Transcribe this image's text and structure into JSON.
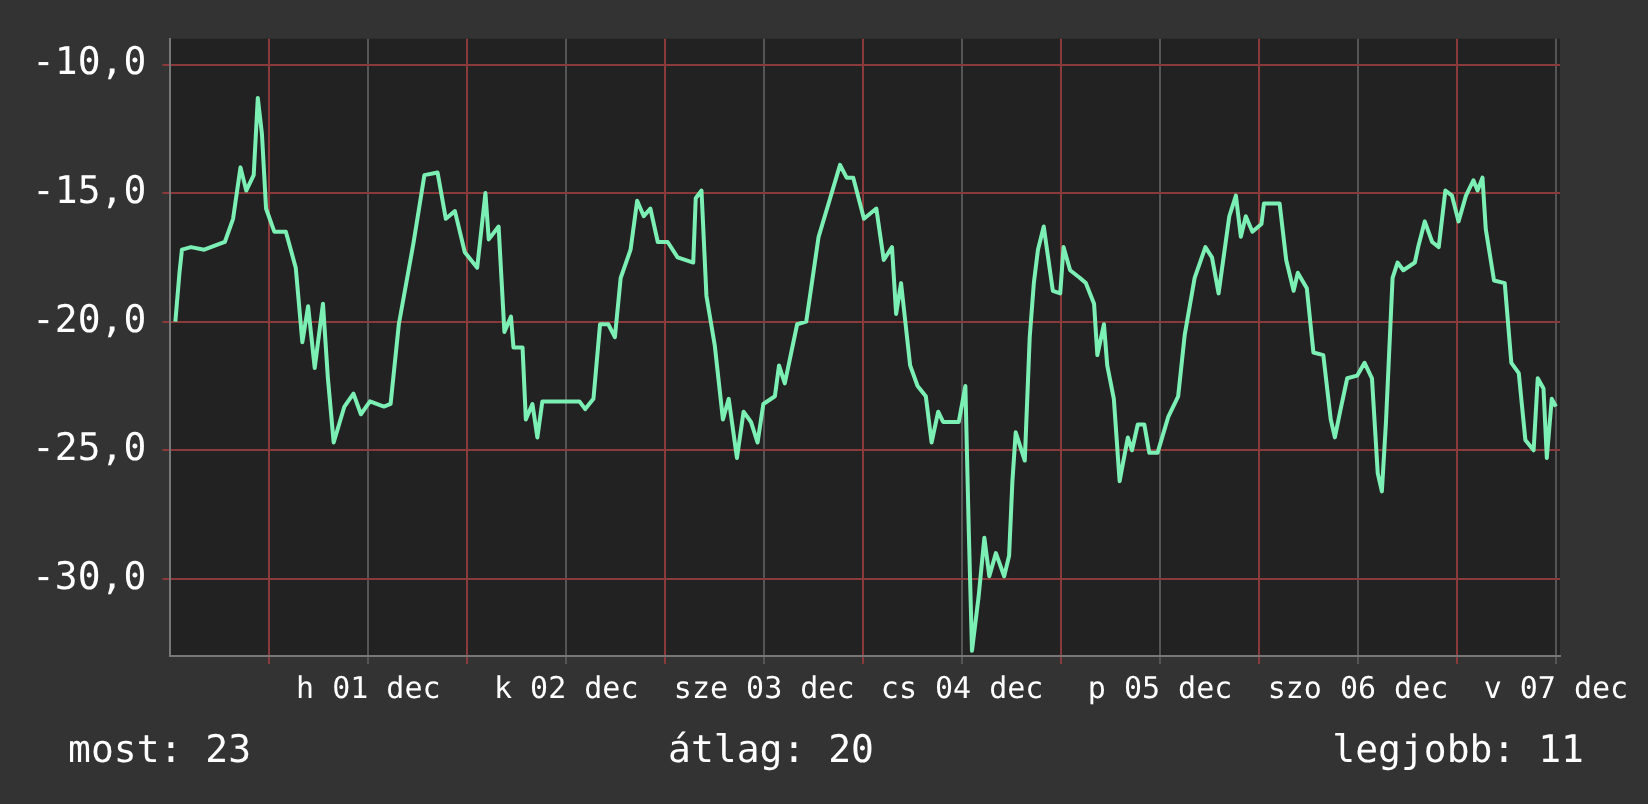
{
  "chart_data": {
    "type": "line",
    "annotations": [
      "most: 23",
      "átlag: 20",
      "legjobb: 11"
    ],
    "xlim": [
      "--11-30T12:00",
      "--12-07T12:30"
    ],
    "ylim": [
      -33,
      -9
    ],
    "xticks": [
      {
        "value": "--12-01T00:00",
        "label": null
      },
      {
        "value": "--12-01T12:00",
        "label": "h 01 dec"
      },
      {
        "value": "--12-02T00:00",
        "label": null
      },
      {
        "value": "--12-02T12:00",
        "label": "k 02 dec"
      },
      {
        "value": "--12-03T00:00",
        "label": null
      },
      {
        "value": "--12-03T12:00",
        "label": "sze 03 dec"
      },
      {
        "value": "--12-04T00:00",
        "label": null
      },
      {
        "value": "--12-04T12:00",
        "label": "cs 04 dec"
      },
      {
        "value": "--12-05T00:00",
        "label": null
      },
      {
        "value": "--12-05T12:00",
        "label": "p 05 dec"
      },
      {
        "value": "--12-06T00:00",
        "label": null
      },
      {
        "value": "--12-06T12:00",
        "label": "szo 06 dec"
      },
      {
        "value": "--12-07T00:00",
        "label": null
      },
      {
        "value": "--12-07T12:00",
        "label": "v 07 dec"
      }
    ],
    "yticks": [
      {
        "value": -10,
        "label": "-10,0"
      },
      {
        "value": -15,
        "label": "-15,0"
      },
      {
        "value": -20,
        "label": "-20,0"
      },
      {
        "value": -25,
        "label": "-25,0"
      },
      {
        "value": -30,
        "label": "-30,0"
      }
    ],
    "grid": true,
    "marker": "none",
    "line_style": "solid",
    "series": [
      {
        "color": "#7cf0b4",
        "x": [
          "--11-30T12:36",
          "--11-30T13:06",
          "--11-30T13:24",
          "--11-30T14:30",
          "--11-30T16:06",
          "--11-30T18:36",
          "--11-30T19:36",
          "--11-30T20:30",
          "--11-30T21:12",
          "--11-30T22:06",
          "--11-30T22:36",
          "--11-30T23:06",
          "--11-30T23:36",
          "--12-01T00:36",
          "--12-01T02:00",
          "--12-01T03:12",
          "--12-01T04:00",
          "--12-01T04:42",
          "--12-01T05:30",
          "--12-01T06:30",
          "--12-01T07:06",
          "--12-01T07:48",
          "--12-01T09:06",
          "--12-01T10:12",
          "--12-01T11:06",
          "--12-01T12:12",
          "--12-01T13:54",
          "--12-01T14:42",
          "--12-01T15:42",
          "--12-01T17:30",
          "--12-01T18:48",
          "--12-01T20:24",
          "--12-01T21:24",
          "--12-01T22:30",
          "--12-01T23:42",
          "--12-02T01:12",
          "--12-02T02:12",
          "--12-02T02:36",
          "--12-02T03:48",
          "--12-02T04:30",
          "--12-02T05:18",
          "--12-02T05:36",
          "--12-02T06:42",
          "--12-02T07:06",
          "--12-02T07:54",
          "--12-02T08:30",
          "--12-02T09:06",
          "--12-02T13:36",
          "--12-02T14:18",
          "--12-02T15:18",
          "--12-02T16:06",
          "--12-02T17:06",
          "--12-02T17:54",
          "--12-02T18:36",
          "--12-02T19:48",
          "--12-02T20:36",
          "--12-02T21:24",
          "--12-02T22:12",
          "--12-02T23:06",
          "--12-03T00:18",
          "--12-03T01:30",
          "--12-03T03:24",
          "--12-03T03:42",
          "--12-03T04:24",
          "--12-03T05:00",
          "--12-03T06:00",
          "--12-03T07:00",
          "--12-03T07:42",
          "--12-03T08:42",
          "--12-03T09:30",
          "--12-03T10:24",
          "--12-03T11:12",
          "--12-03T11:54",
          "--12-03T13:18",
          "--12-03T13:48",
          "--12-03T14:30",
          "--12-03T16:00",
          "--12-03T17:06",
          "--12-03T18:36",
          "--12-03T20:00",
          "--12-03T21:12",
          "--12-03T22:00",
          "--12-03T22:48",
          "--12-04T00:06",
          "--12-04T01:36",
          "--12-04T02:30",
          "--12-04T03:30",
          "--12-04T04:00",
          "--12-04T04:36",
          "--12-04T05:42",
          "--12-04T06:36",
          "--12-04T07:36",
          "--12-04T08:18",
          "--12-04T09:06",
          "--12-04T09:42",
          "--12-04T11:36",
          "--12-04T12:24",
          "--12-04T12:48",
          "--12-04T13:12",
          "--12-04T14:00",
          "--12-04T14:42",
          "--12-04T15:18",
          "--12-04T16:06",
          "--12-04T17:06",
          "--12-04T17:42",
          "--12-04T18:06",
          "--12-04T18:30",
          "--12-04T19:36",
          "--12-04T20:12",
          "--12-04T20:42",
          "--12-04T21:12",
          "--12-04T21:54",
          "--12-04T23:00",
          "--12-04T23:54",
          "--12-05T00:18",
          "--12-05T01:06",
          "--12-05T02:18",
          "--12-05T03:00",
          "--12-05T04:00",
          "--12-05T04:24",
          "--12-05T05:12",
          "--12-05T05:36",
          "--12-05T06:24",
          "--12-05T07:06",
          "--12-05T08:06",
          "--12-05T08:36",
          "--12-05T09:18",
          "--12-05T10:06",
          "--12-05T10:42",
          "--12-05T11:42",
          "--12-05T13:00",
          "--12-05T14:12",
          "--12-05T15:00",
          "--12-05T16:12",
          "--12-05T17:30",
          "--12-05T18:18",
          "--12-05T19:06",
          "--12-05T20:24",
          "--12-05T21:12",
          "--12-05T21:48",
          "--12-05T22:24",
          "--12-05T23:12",
          "--12-06T00:18",
          "--12-06T00:36",
          "--12-06T02:30",
          "--12-06T03:18",
          "--12-06T04:12",
          "--12-06T04:42",
          "--12-06T05:48",
          "--12-06T06:36",
          "--12-06T07:48",
          "--12-06T08:42",
          "--12-06T09:12",
          "--12-06T09:54",
          "--12-06T10:42",
          "--12-06T11:54",
          "--12-06T12:48",
          "--12-06T13:42",
          "--12-06T14:24",
          "--12-06T14:54",
          "--12-06T15:24",
          "--12-06T16:12",
          "--12-06T16:48",
          "--12-06T17:30",
          "--12-06T18:54",
          "--12-06T19:18",
          "--12-06T20:06",
          "--12-06T21:00",
          "--12-06T21:48",
          "--12-06T22:36",
          "--12-06T23:24",
          "--12-07T00:12",
          "--12-07T01:06",
          "--12-07T02:00",
          "--12-07T02:30",
          "--12-07T03:06",
          "--12-07T03:30",
          "--12-07T04:30",
          "--12-07T05:48",
          "--12-07T06:36",
          "--12-07T07:30",
          "--12-07T08:18",
          "--12-07T09:18",
          "--12-07T09:48",
          "--12-07T10:30",
          "--12-07T10:54",
          "--12-07T11:30",
          "--12-07T12:00"
        ],
        "values": [
          -20.0,
          -18.1,
          -17.2,
          -17.1,
          -17.2,
          -16.9,
          -16.0,
          -14.0,
          -14.9,
          -14.3,
          -11.3,
          -12.7,
          -15.6,
          -16.5,
          -16.5,
          -17.9,
          -20.8,
          -19.4,
          -21.8,
          -19.3,
          -22.2,
          -24.7,
          -23.3,
          -22.8,
          -23.6,
          -23.1,
          -23.3,
          -23.2,
          -20.1,
          -16.9,
          -14.3,
          -14.2,
          -16.0,
          -15.7,
          -17.3,
          -17.9,
          -15.0,
          -16.8,
          -16.3,
          -20.4,
          -19.8,
          -21.0,
          -21.0,
          -23.8,
          -23.2,
          -24.5,
          -23.1,
          -23.1,
          -23.4,
          -23.0,
          -20.1,
          -20.1,
          -20.6,
          -18.3,
          -17.2,
          -15.3,
          -15.9,
          -15.6,
          -16.9,
          -16.9,
          -17.5,
          -17.7,
          -15.2,
          -14.9,
          -19.0,
          -20.9,
          -23.8,
          -23.0,
          -25.3,
          -23.5,
          -23.9,
          -24.7,
          -23.2,
          -22.9,
          -21.7,
          -22.4,
          -20.1,
          -20.0,
          -16.7,
          -15.2,
          -13.9,
          -14.4,
          -14.4,
          -16.0,
          -15.6,
          -17.6,
          -17.1,
          -19.7,
          -18.5,
          -21.7,
          -22.5,
          -22.9,
          -24.7,
          -23.5,
          -23.9,
          -23.9,
          -22.5,
          -28.0,
          -32.8,
          -30.7,
          -28.4,
          -29.9,
          -29.0,
          -29.9,
          -29.1,
          -26.2,
          -24.3,
          -25.4,
          -20.6,
          -18.5,
          -17.2,
          -16.3,
          -18.8,
          -18.9,
          -17.1,
          -18.0,
          -18.3,
          -18.5,
          -19.3,
          -21.3,
          -20.1,
          -21.7,
          -23.0,
          -26.2,
          -24.5,
          -25.0,
          -24.0,
          -24.0,
          -25.1,
          -25.1,
          -23.7,
          -22.9,
          -20.5,
          -18.3,
          -17.1,
          -17.5,
          -18.9,
          -15.9,
          -15.1,
          -16.7,
          -15.9,
          -16.5,
          -16.2,
          -15.4,
          -15.4,
          -17.6,
          -18.8,
          -18.1,
          -18.7,
          -21.2,
          -21.3,
          -23.8,
          -24.5,
          -23.4,
          -22.2,
          -22.1,
          -21.6,
          -22.2,
          -25.9,
          -26.6,
          -23.9,
          -18.3,
          -17.7,
          -18.0,
          -17.7,
          -17.1,
          -16.1,
          -16.9,
          -17.1,
          -14.9,
          -15.1,
          -16.1,
          -15.1,
          -14.5,
          -14.9,
          -14.4,
          -16.4,
          -18.4,
          -18.5,
          -21.6,
          -22.0,
          -24.6,
          -25.0,
          -22.2,
          -22.6,
          -25.3,
          -23.0,
          -23.3
        ]
      }
    ]
  }
}
